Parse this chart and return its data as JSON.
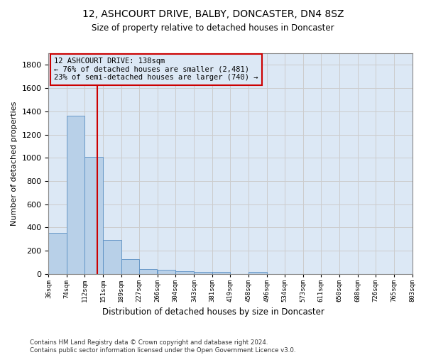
{
  "title": "12, ASHCOURT DRIVE, BALBY, DONCASTER, DN4 8SZ",
  "subtitle": "Size of property relative to detached houses in Doncaster",
  "xlabel": "Distribution of detached houses by size in Doncaster",
  "ylabel": "Number of detached properties",
  "footnote1": "Contains HM Land Registry data © Crown copyright and database right 2024.",
  "footnote2": "Contains public sector information licensed under the Open Government Licence v3.0.",
  "annotation_line1": "12 ASHCOURT DRIVE: 138sqm",
  "annotation_line2": "← 76% of detached houses are smaller (2,481)",
  "annotation_line3": "23% of semi-detached houses are larger (740) →",
  "property_size": 138,
  "bar_color": "#b8d0e8",
  "bar_edge_color": "#5a8fc3",
  "vline_color": "#cc0000",
  "grid_color": "#cccccc",
  "bg_color": "#ffffff",
  "plot_bg_color": "#dce8f5",
  "bin_edges": [
    36,
    74,
    112,
    151,
    189,
    227,
    266,
    304,
    343,
    381,
    419,
    458,
    496,
    534,
    573,
    611,
    650,
    688,
    726,
    765,
    803
  ],
  "bin_labels": [
    "36sqm",
    "74sqm",
    "112sqm",
    "151sqm",
    "189sqm",
    "227sqm",
    "266sqm",
    "304sqm",
    "343sqm",
    "381sqm",
    "419sqm",
    "458sqm",
    "496sqm",
    "534sqm",
    "573sqm",
    "611sqm",
    "650sqm",
    "688sqm",
    "726sqm",
    "765sqm",
    "803sqm"
  ],
  "bar_heights": [
    355,
    1365,
    1010,
    290,
    125,
    40,
    35,
    25,
    20,
    15,
    0,
    15,
    0,
    0,
    0,
    0,
    0,
    0,
    0,
    0
  ],
  "ylim": [
    0,
    1900
  ],
  "yticks": [
    0,
    200,
    400,
    600,
    800,
    1000,
    1200,
    1400,
    1600,
    1800
  ]
}
